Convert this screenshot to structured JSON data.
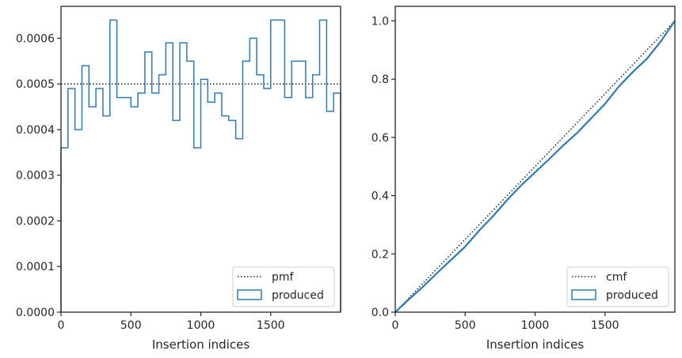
{
  "colors": {
    "produced": "#2c7bb6",
    "reference": "#222222",
    "axis": "#262626",
    "legend_border": "#cccccc"
  },
  "chart_data": [
    {
      "type": "line",
      "subtype": "step-histogram",
      "title": "",
      "xlabel": "Insertion indices",
      "ylabel": "",
      "xlim": [
        0,
        2000
      ],
      "ylim": [
        0,
        0.00067
      ],
      "xticks": [
        0,
        500,
        1000,
        1500
      ],
      "xtick_labels": [
        "0",
        "500",
        "1000",
        "1500"
      ],
      "yticks": [
        0,
        0.0001,
        0.0002,
        0.0003,
        0.0004,
        0.0005,
        0.0006
      ],
      "ytick_labels": [
        "0.0000",
        "0.0001",
        "0.0002",
        "0.0003",
        "0.0004",
        "0.0005",
        "0.0006"
      ],
      "grid": false,
      "legend_position": "lower-right",
      "bin_width": 50,
      "series": [
        {
          "name": "pmf",
          "style": "dotted",
          "x": [
            0,
            2000
          ],
          "y": [
            0.0005,
            0.0005
          ]
        },
        {
          "name": "produced",
          "style": "step",
          "values": [
            0.00036,
            0.00049,
            0.0004,
            0.00054,
            0.00045,
            0.00049,
            0.00043,
            0.00064,
            0.00047,
            0.00047,
            0.00045,
            0.00048,
            0.00057,
            0.00048,
            0.00052,
            0.00059,
            0.00042,
            0.00059,
            0.00055,
            0.00036,
            0.00051,
            0.00046,
            0.00048,
            0.00043,
            0.00042,
            0.00038,
            0.00055,
            0.0006,
            0.00052,
            0.00049,
            0.00064,
            0.00064,
            0.00047,
            0.00055,
            0.00055,
            0.00047,
            0.00052,
            0.00064,
            0.00044,
            0.00048
          ]
        }
      ]
    },
    {
      "type": "line",
      "subtype": "cumulative",
      "title": "",
      "xlabel": "Insertion indices",
      "ylabel": "",
      "xlim": [
        0,
        2000
      ],
      "ylim": [
        0,
        1.05
      ],
      "xticks": [
        0,
        500,
        1000,
        1500
      ],
      "xtick_labels": [
        "0",
        "500",
        "1000",
        "1500"
      ],
      "yticks": [
        0,
        0.2,
        0.4,
        0.6,
        0.8,
        1.0
      ],
      "ytick_labels": [
        "0.0",
        "0.2",
        "0.4",
        "0.6",
        "0.8",
        "1.0"
      ],
      "grid": false,
      "legend_position": "lower-right",
      "series": [
        {
          "name": "cmf",
          "style": "dotted",
          "x": [
            0,
            2000
          ],
          "y": [
            0,
            1
          ]
        },
        {
          "name": "produced",
          "style": "solid",
          "x": [
            0,
            100,
            200,
            300,
            400,
            500,
            600,
            700,
            800,
            900,
            1000,
            1100,
            1200,
            1300,
            1400,
            1500,
            1600,
            1700,
            1800,
            1900,
            2000
          ],
          "y": [
            0,
            0.045,
            0.088,
            0.135,
            0.18,
            0.225,
            0.28,
            0.33,
            0.385,
            0.435,
            0.48,
            0.525,
            0.572,
            0.615,
            0.665,
            0.715,
            0.775,
            0.825,
            0.87,
            0.93,
            1.0
          ]
        }
      ]
    }
  ]
}
